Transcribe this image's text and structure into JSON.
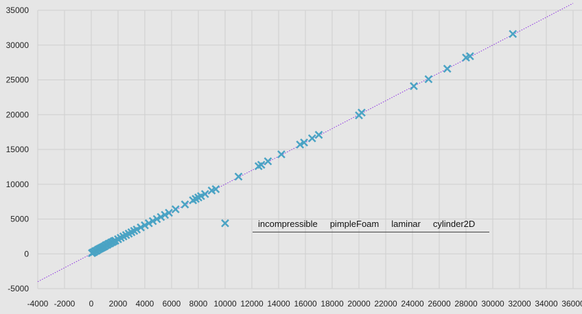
{
  "chart_data": {
    "type": "scatter",
    "title": "",
    "xlabel": "",
    "ylabel": "",
    "xlim": [
      -4000,
      36000
    ],
    "ylim": [
      -5000,
      35000
    ],
    "x_ticks": [
      -4000,
      -2000,
      0,
      2000,
      4000,
      6000,
      8000,
      10000,
      12000,
      14000,
      16000,
      18000,
      20000,
      22000,
      24000,
      26000,
      28000,
      30000,
      32000,
      34000,
      36000
    ],
    "y_ticks": [
      -5000,
      0,
      5000,
      10000,
      15000,
      20000,
      25000,
      30000,
      35000
    ],
    "grid": true,
    "marker": "x",
    "marker_color": "#4aa3c4",
    "reference_line": {
      "slope": 1,
      "intercept": 0,
      "style": "dotted",
      "color": "#8a2be2"
    },
    "series": [
      {
        "points": [
          [
            50,
            100
          ],
          [
            120,
            200
          ],
          [
            200,
            250
          ],
          [
            300,
            400
          ],
          [
            400,
            450
          ],
          [
            500,
            600
          ],
          [
            600,
            700
          ],
          [
            700,
            800
          ],
          [
            800,
            900
          ],
          [
            900,
            1000
          ],
          [
            1000,
            1100
          ],
          [
            1100,
            1250
          ],
          [
            1200,
            1300
          ],
          [
            1300,
            1450
          ],
          [
            1400,
            1500
          ],
          [
            1500,
            1650
          ],
          [
            1600,
            1700
          ],
          [
            1700,
            1850
          ],
          [
            1800,
            1900
          ],
          [
            2000,
            2100
          ],
          [
            2200,
            2300
          ],
          [
            2400,
            2500
          ],
          [
            2600,
            2700
          ],
          [
            2800,
            2900
          ],
          [
            3000,
            3100
          ],
          [
            3200,
            3300
          ],
          [
            3400,
            3500
          ],
          [
            3700,
            3800
          ],
          [
            4000,
            4100
          ],
          [
            4300,
            4400
          ],
          [
            4600,
            4700
          ],
          [
            4900,
            5000
          ],
          [
            5200,
            5300
          ],
          [
            5500,
            5600
          ],
          [
            5800,
            5900
          ],
          [
            6300,
            6400
          ],
          [
            7000,
            7100
          ],
          [
            7600,
            7700
          ],
          [
            7800,
            7900
          ],
          [
            8000,
            8100
          ],
          [
            8200,
            8300
          ],
          [
            8500,
            8600
          ],
          [
            9000,
            9100
          ],
          [
            9300,
            9300
          ],
          [
            10000,
            4400
          ],
          [
            11000,
            11100
          ],
          [
            12500,
            12600
          ],
          [
            12700,
            12800
          ],
          [
            13200,
            13300
          ],
          [
            14200,
            14300
          ],
          [
            15600,
            15700
          ],
          [
            15900,
            16000
          ],
          [
            16500,
            16600
          ],
          [
            17000,
            17100
          ],
          [
            20000,
            19900
          ],
          [
            20200,
            20300
          ],
          [
            24100,
            24100
          ],
          [
            25200,
            25100
          ],
          [
            26600,
            26600
          ],
          [
            28000,
            28200
          ],
          [
            28300,
            28400
          ],
          [
            31500,
            31600
          ]
        ]
      }
    ]
  },
  "tooltip": {
    "items": [
      "incompressible",
      "pimpleFoam",
      "laminar",
      "cylinder2D"
    ]
  }
}
